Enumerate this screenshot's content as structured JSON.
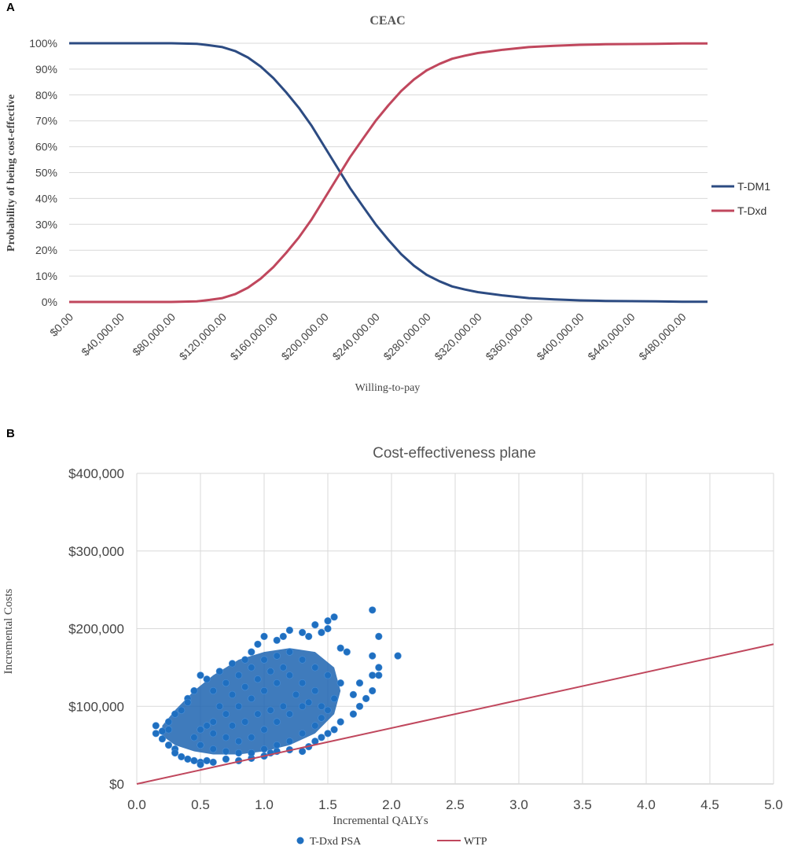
{
  "panels": {
    "a": {
      "label": "A"
    },
    "b": {
      "label": "B"
    }
  },
  "colors": {
    "tdm1": "#2c4b82",
    "tdxd": "#c0475d",
    "scatter": "#1f6fc0",
    "wtp": "#c0475d",
    "grid": "#d9d9d9"
  },
  "chart_data": [
    {
      "type": "line",
      "title": "CEAC",
      "xlabel": "Willing-to-pay",
      "ylabel": "Probability of being cost-effective",
      "x_tick_labels": [
        "$0.00",
        "$40,000.00",
        "$80,000.00",
        "$120,000.00",
        "$160,000.00",
        "$200,000.00",
        "$240,000.00",
        "$280,000.00",
        "$320,000.00",
        "$360,000.00",
        "$400,000.00",
        "$440,000.00",
        "$480,000.00"
      ],
      "x_tick_values": [
        0,
        40000,
        80000,
        120000,
        160000,
        200000,
        240000,
        280000,
        320000,
        360000,
        400000,
        440000,
        480000
      ],
      "y_tick_labels": [
        "0%",
        "10%",
        "20%",
        "30%",
        "40%",
        "50%",
        "60%",
        "70%",
        "80%",
        "90%",
        "100%"
      ],
      "xlim": [
        0,
        500000
      ],
      "ylim": [
        0,
        100
      ],
      "grid": "horizontal",
      "legend_position": "right",
      "x": [
        0,
        20000,
        40000,
        60000,
        80000,
        100000,
        110000,
        120000,
        130000,
        140000,
        150000,
        160000,
        170000,
        180000,
        190000,
        200000,
        210000,
        220000,
        230000,
        240000,
        250000,
        260000,
        270000,
        280000,
        290000,
        300000,
        310000,
        320000,
        340000,
        360000,
        380000,
        400000,
        420000,
        440000,
        460000,
        480000,
        500000
      ],
      "series": [
        {
          "name": "T-DM1",
          "values": [
            100,
            100,
            100,
            100,
            100,
            99.8,
            99.2,
            98.5,
            97,
            94.5,
            91,
            86.5,
            81,
            75,
            68,
            60,
            52,
            44,
            37,
            30,
            24,
            18.5,
            14,
            10.5,
            8,
            6,
            4.8,
            3.8,
            2.5,
            1.5,
            1,
            0.6,
            0.4,
            0.3,
            0.2,
            0.1,
            0.1
          ]
        },
        {
          "name": "T-Dxd",
          "values": [
            0,
            0,
            0,
            0,
            0,
            0.2,
            0.8,
            1.5,
            3,
            5.5,
            9,
            13.5,
            19,
            25,
            32,
            40,
            48,
            56,
            63,
            70,
            76,
            81.5,
            86,
            89.5,
            92,
            94,
            95.2,
            96.2,
            97.5,
            98.5,
            99,
            99.4,
            99.6,
            99.7,
            99.8,
            99.9,
            99.9
          ]
        }
      ]
    },
    {
      "type": "scatter",
      "title": "Cost-effectiveness plane",
      "xlabel": "Incremental QALYs",
      "ylabel": "Incremental Costs",
      "x_tick_labels": [
        "0.0",
        "0.5",
        "1.0",
        "1.5",
        "2.0",
        "2.5",
        "3.0",
        "3.5",
        "4.0",
        "4.5",
        "5.0"
      ],
      "y_tick_labels": [
        "$0",
        "$100,000",
        "$200,000",
        "$300,000",
        "$400,000"
      ],
      "xlim": [
        0,
        5
      ],
      "ylim": [
        0,
        400000
      ],
      "grid": "both",
      "legend_position": "bottom",
      "series": [
        {
          "name": "T-Dxd PSA",
          "points": [
            [
              0.15,
              75000
            ],
            [
              0.15,
              65000
            ],
            [
              0.2,
              58000
            ],
            [
              0.25,
              50000
            ],
            [
              0.3,
              45000
            ],
            [
              0.3,
              40000
            ],
            [
              0.35,
              35000
            ],
            [
              0.4,
              32000
            ],
            [
              0.45,
              30000
            ],
            [
              0.5,
              28000
            ],
            [
              0.5,
              25000
            ],
            [
              0.55,
              30000
            ],
            [
              0.6,
              28000
            ],
            [
              0.7,
              32000
            ],
            [
              0.8,
              30000
            ],
            [
              0.9,
              33000
            ],
            [
              1.0,
              36000
            ],
            [
              1.05,
              40000
            ],
            [
              1.1,
              42000
            ],
            [
              1.2,
              44000
            ],
            [
              1.3,
              42000
            ],
            [
              1.35,
              48000
            ],
            [
              1.4,
              55000
            ],
            [
              1.45,
              60000
            ],
            [
              1.5,
              65000
            ],
            [
              1.55,
              70000
            ],
            [
              1.6,
              80000
            ],
            [
              1.7,
              90000
            ],
            [
              1.75,
              100000
            ],
            [
              1.8,
              110000
            ],
            [
              1.85,
              120000
            ],
            [
              1.85,
              140000
            ],
            [
              1.9,
              140000
            ],
            [
              1.9,
              150000
            ],
            [
              1.9,
              190000
            ],
            [
              1.85,
              165000
            ],
            [
              1.85,
              224000
            ],
            [
              2.05,
              165000
            ],
            [
              1.75,
              130000
            ],
            [
              1.7,
              115000
            ],
            [
              1.65,
              170000
            ],
            [
              1.6,
              175000
            ],
            [
              1.55,
              215000
            ],
            [
              1.5,
              210000
            ],
            [
              1.5,
              200000
            ],
            [
              1.45,
              195000
            ],
            [
              1.4,
              205000
            ],
            [
              1.35,
              190000
            ],
            [
              1.3,
              195000
            ],
            [
              1.2,
              198000
            ],
            [
              1.15,
              190000
            ],
            [
              1.1,
              185000
            ],
            [
              1.0,
              190000
            ],
            [
              0.95,
              180000
            ],
            [
              0.9,
              170000
            ],
            [
              0.85,
              160000
            ],
            [
              0.75,
              155000
            ],
            [
              0.65,
              145000
            ],
            [
              0.55,
              135000
            ],
            [
              0.5,
              140000
            ],
            [
              0.45,
              120000
            ],
            [
              0.4,
              110000
            ],
            [
              0.4,
              105000
            ],
            [
              0.35,
              95000
            ],
            [
              0.3,
              90000
            ],
            [
              0.25,
              80000
            ],
            [
              0.25,
              70000
            ],
            [
              0.2,
              68000
            ],
            [
              0.6,
              120000
            ],
            [
              0.7,
              130000
            ],
            [
              0.8,
              140000
            ],
            [
              0.9,
              150000
            ],
            [
              1.0,
              160000
            ],
            [
              1.1,
              165000
            ],
            [
              1.2,
              170000
            ],
            [
              1.3,
              160000
            ],
            [
              1.4,
              150000
            ],
            [
              1.5,
              140000
            ],
            [
              1.6,
              130000
            ],
            [
              1.55,
              110000
            ],
            [
              1.5,
              95000
            ],
            [
              1.45,
              85000
            ],
            [
              1.4,
              75000
            ],
            [
              1.3,
              65000
            ],
            [
              1.2,
              55000
            ],
            [
              1.1,
              50000
            ],
            [
              1.0,
              45000
            ],
            [
              0.9,
              40000
            ],
            [
              0.8,
              40000
            ],
            [
              0.7,
              42000
            ],
            [
              0.6,
              45000
            ],
            [
              0.5,
              50000
            ],
            [
              0.45,
              60000
            ],
            [
              0.5,
              70000
            ],
            [
              0.6,
              80000
            ],
            [
              0.7,
              90000
            ],
            [
              0.8,
              100000
            ],
            [
              0.9,
              110000
            ],
            [
              1.0,
              120000
            ],
            [
              1.1,
              130000
            ],
            [
              1.2,
              140000
            ],
            [
              1.3,
              130000
            ],
            [
              1.4,
              120000
            ],
            [
              1.3,
              100000
            ],
            [
              1.2,
              90000
            ],
            [
              1.1,
              80000
            ],
            [
              1.0,
              70000
            ],
            [
              0.9,
              60000
            ],
            [
              0.8,
              55000
            ],
            [
              0.7,
              60000
            ],
            [
              0.6,
              65000
            ],
            [
              0.55,
              75000
            ],
            [
              0.65,
              100000
            ],
            [
              0.75,
              115000
            ],
            [
              0.85,
              125000
            ],
            [
              0.95,
              135000
            ],
            [
              1.05,
              145000
            ],
            [
              1.15,
              150000
            ],
            [
              1.25,
              115000
            ],
            [
              1.35,
              105000
            ],
            [
              1.45,
              100000
            ],
            [
              1.15,
              100000
            ],
            [
              1.05,
              95000
            ],
            [
              0.95,
              90000
            ],
            [
              0.85,
              80000
            ],
            [
              0.75,
              75000
            ]
          ]
        },
        {
          "name": "WTP",
          "line": [
            [
              0,
              0
            ],
            [
              5,
              180000
            ]
          ]
        }
      ]
    }
  ]
}
